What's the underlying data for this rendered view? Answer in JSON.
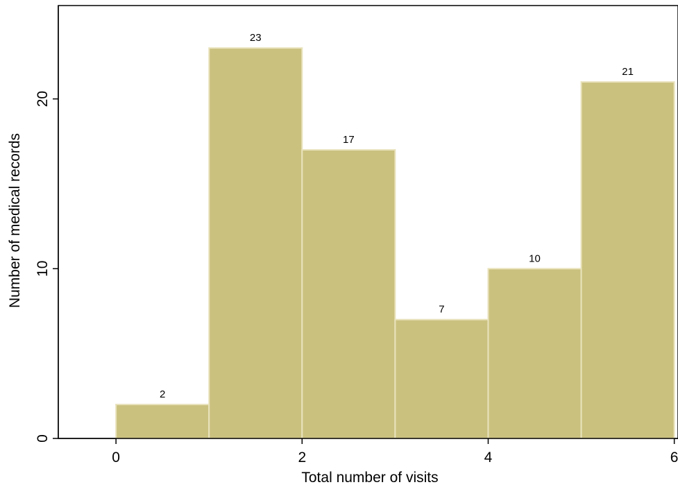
{
  "chart_data": {
    "type": "bar",
    "title": "",
    "xlabel": "Total number of visits",
    "ylabel": "Number of medical records",
    "bins": [
      {
        "x0": 0,
        "x1": 1,
        "value": 2,
        "label": "2"
      },
      {
        "x0": 1,
        "x1": 2,
        "value": 23,
        "label": "23"
      },
      {
        "x0": 2,
        "x1": 3,
        "value": 17,
        "label": "17"
      },
      {
        "x0": 3,
        "x1": 4,
        "value": 7,
        "label": "7"
      },
      {
        "x0": 4,
        "x1": 5,
        "value": 10,
        "label": "10"
      },
      {
        "x0": 5,
        "x1": 6,
        "value": 21,
        "label": "21"
      }
    ],
    "xticks": [
      {
        "value": 0,
        "label": "0"
      },
      {
        "value": 2,
        "label": "2"
      },
      {
        "value": 4,
        "label": "4"
      },
      {
        "value": 6,
        "label": "6"
      }
    ],
    "yticks": [
      {
        "value": 0,
        "label": "0"
      },
      {
        "value": 10,
        "label": "10"
      },
      {
        "value": 20,
        "label": "20"
      }
    ],
    "xlim": [
      -0.62,
      6.04
    ],
    "ylim": [
      0,
      25.5
    ],
    "grid": false,
    "legend": "none",
    "colors": {
      "bar_fill": "#cbc17f",
      "bar_edge": "#e9e3bd",
      "axis": "#000000",
      "background": "#ffffff"
    }
  }
}
